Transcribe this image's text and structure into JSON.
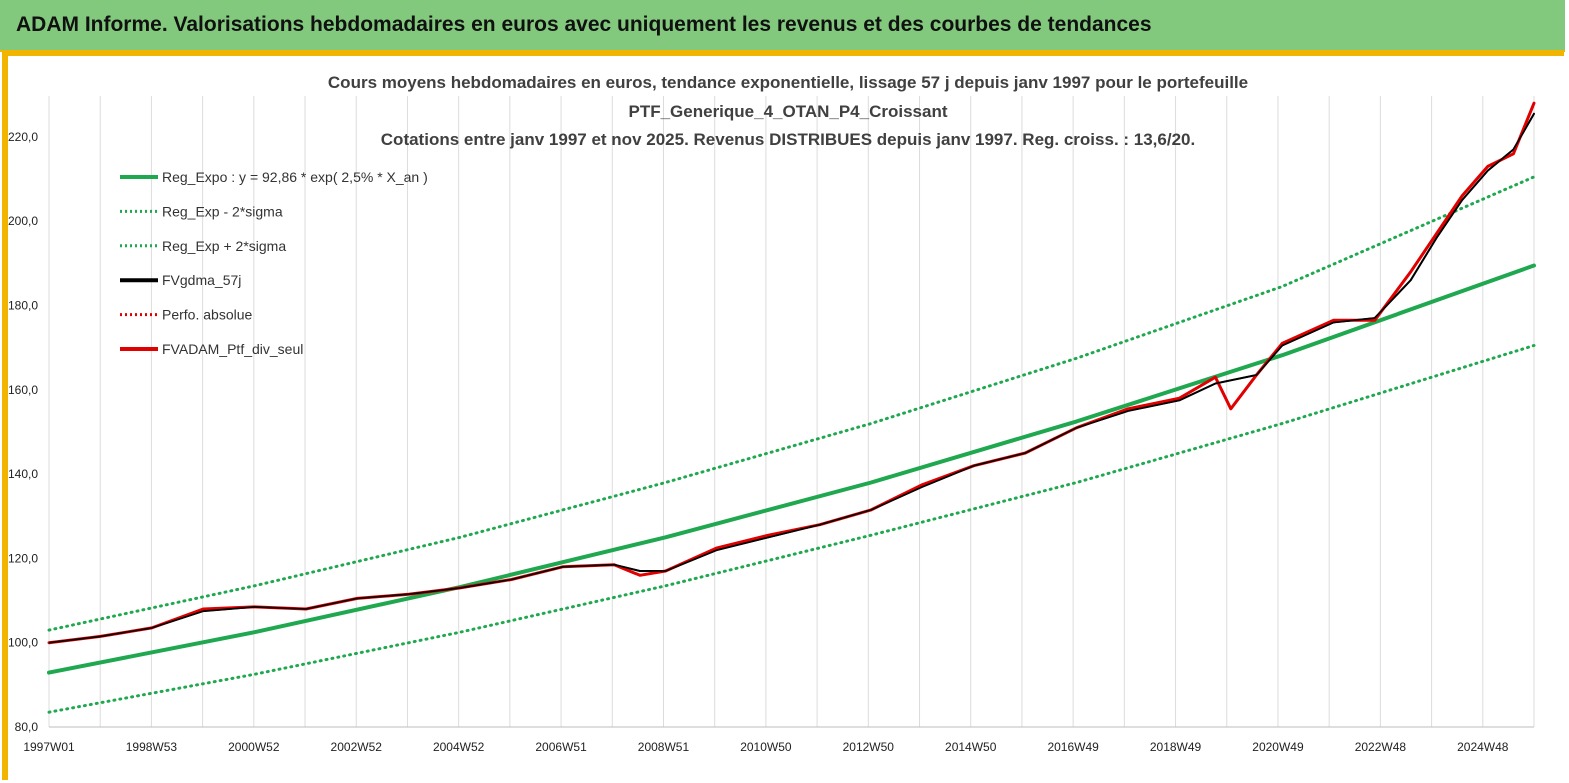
{
  "banner": {
    "title": "ADAM Informe. Valorisations hebdomadaires en euros avec uniquement les revenus et des courbes de tendances"
  },
  "chart_data": {
    "type": "line",
    "title_lines": [
      "Cours moyens hebdomadaires  en euros, tendance exponentielle, lissage 57 j depuis janv 1997 pour le portefeuille",
      "PTF_Generique_4_OTAN_P4_Croissant",
      "Cotations  entre janv 1997 et nov 2025. Revenus DISTRIBUES depuis janv 1997. Reg. croiss. : 13,6/20."
    ],
    "xlabel": "",
    "ylabel": "",
    "ylim": [
      80,
      230
    ],
    "y_ticks": [
      "80,0",
      "100,0",
      "120,0",
      "140,0",
      "160,0",
      "180,0",
      "200,0",
      "220,0"
    ],
    "x_ticks": [
      "1997W01",
      "1998W53",
      "2000W52",
      "2002W52",
      "2004W52",
      "2006W51",
      "2008W51",
      "2010W50",
      "2012W50",
      "2014W50",
      "2016W49",
      "2018W49",
      "2020W49",
      "2022W48",
      "2024W48"
    ],
    "x_range": [
      "1997W01",
      "2025W47"
    ],
    "grid": "vertical",
    "legend_position": "top-left",
    "legend": [
      {
        "label": "Reg_Expo : y = 92,86 * exp( 2,5% *  X_an )",
        "color": "#1fa84f",
        "style": "solid"
      },
      {
        "label": "Reg_Exp - 2*sigma",
        "color": "#1fa84f",
        "style": "dotted"
      },
      {
        "label": "Reg_Exp + 2*sigma",
        "color": "#1fa84f",
        "style": "dotted"
      },
      {
        "label": "FVgdma_57j",
        "color": "#000000",
        "style": "solid"
      },
      {
        "label": "Perfo. absolue",
        "color": "#e00000",
        "style": "dotted"
      },
      {
        "label": "FVADAM_Ptf_div_seul",
        "color": "#e00000",
        "style": "solid"
      }
    ],
    "series": [
      {
        "name": "Reg_Expo : y = 92,86 * exp( 2,5% *  X_an )",
        "color": "#1fa84f",
        "style": "solid",
        "x": [
          1997.0,
          2001.0,
          2005.0,
          2009.0,
          2013.0,
          2017.0,
          2021.0,
          2025.9
        ],
        "values": [
          92.9,
          102.5,
          113.2,
          125.0,
          138.0,
          152.5,
          168.2,
          189.5
        ]
      },
      {
        "name": "Reg_Exp - 2*sigma",
        "color": "#1fa84f",
        "style": "dotted",
        "x": [
          1997.0,
          2001.0,
          2005.0,
          2009.0,
          2013.0,
          2017.0,
          2021.0,
          2025.9
        ],
        "values": [
          83.5,
          92.5,
          102.5,
          113.5,
          125.5,
          138.0,
          152.0,
          170.5
        ]
      },
      {
        "name": "Reg_Exp + 2*sigma",
        "color": "#1fa84f",
        "style": "dotted",
        "x": [
          1997.0,
          2001.0,
          2005.0,
          2009.0,
          2013.0,
          2017.0,
          2021.0,
          2025.9
        ],
        "values": [
          103.0,
          113.5,
          125.0,
          138.0,
          152.0,
          167.5,
          184.5,
          210.5
        ]
      },
      {
        "name": "FVgdma_57j",
        "color": "#000000",
        "style": "solid",
        "x": [
          1997.0,
          1998.0,
          1999.0,
          2000.0,
          2001.0,
          2002.0,
          2003.0,
          2004.0,
          2005.0,
          2006.0,
          2007.0,
          2008.0,
          2008.5,
          2009.0,
          2010.0,
          2011.0,
          2012.0,
          2013.0,
          2014.0,
          2015.0,
          2016.0,
          2017.0,
          2018.0,
          2019.0,
          2019.7,
          2020.5,
          2021.0,
          2022.0,
          2022.8,
          2023.5,
          2024.0,
          2024.5,
          2025.0,
          2025.5,
          2025.9
        ],
        "values": [
          100.0,
          101.5,
          103.5,
          107.5,
          108.5,
          108.0,
          110.5,
          111.5,
          113.0,
          115.0,
          118.0,
          118.5,
          117.0,
          117.0,
          122.0,
          125.0,
          128.0,
          131.5,
          137.0,
          142.0,
          145.0,
          151.0,
          155.0,
          157.5,
          161.5,
          163.5,
          170.5,
          176.0,
          177.0,
          186.0,
          196.0,
          205.0,
          212.0,
          217.0,
          225.5
        ]
      },
      {
        "name": "Perfo. absolue",
        "color": "#e00000",
        "style": "dotted",
        "x": [
          1997.0,
          1998.0,
          1999.0,
          2000.0,
          2001.0,
          2002.0,
          2003.0,
          2004.0,
          2005.0,
          2006.0,
          2007.0,
          2008.0,
          2008.5,
          2009.0,
          2010.0,
          2011.0,
          2012.0,
          2013.0,
          2014.0,
          2015.0,
          2016.0,
          2017.0,
          2018.0,
          2019.0,
          2019.7,
          2020.0,
          2020.5,
          2021.0,
          2022.0,
          2022.8,
          2023.5,
          2024.0,
          2024.5,
          2025.0,
          2025.5,
          2025.9
        ],
        "values": [
          100.0,
          101.5,
          103.5,
          108.0,
          108.5,
          108.0,
          110.5,
          111.5,
          113.0,
          115.0,
          118.0,
          118.5,
          116.0,
          117.0,
          122.5,
          125.5,
          128.0,
          131.5,
          137.5,
          142.0,
          145.0,
          151.0,
          155.5,
          158.0,
          163.0,
          155.5,
          163.5,
          171.0,
          176.5,
          176.5,
          188.0,
          197.0,
          206.0,
          213.0,
          216.0,
          228.0
        ]
      },
      {
        "name": "FVADAM_Ptf_div_seul",
        "color": "#e00000",
        "style": "solid",
        "x": [
          1997.0,
          1998.0,
          1999.0,
          2000.0,
          2001.0,
          2002.0,
          2003.0,
          2004.0,
          2005.0,
          2006.0,
          2007.0,
          2008.0,
          2008.5,
          2009.0,
          2010.0,
          2011.0,
          2012.0,
          2013.0,
          2014.0,
          2015.0,
          2016.0,
          2017.0,
          2018.0,
          2019.0,
          2019.7,
          2020.0,
          2020.5,
          2021.0,
          2022.0,
          2022.8,
          2023.5,
          2024.0,
          2024.5,
          2025.0,
          2025.5,
          2025.9
        ],
        "values": [
          100.0,
          101.5,
          103.5,
          108.0,
          108.5,
          108.0,
          110.5,
          111.5,
          113.0,
          115.0,
          118.0,
          118.5,
          116.0,
          117.0,
          122.5,
          125.5,
          128.0,
          131.5,
          137.5,
          142.0,
          145.0,
          151.0,
          155.5,
          158.0,
          163.0,
          155.5,
          163.5,
          171.0,
          176.5,
          176.5,
          188.0,
          197.0,
          206.0,
          213.0,
          216.0,
          228.0
        ]
      }
    ]
  }
}
